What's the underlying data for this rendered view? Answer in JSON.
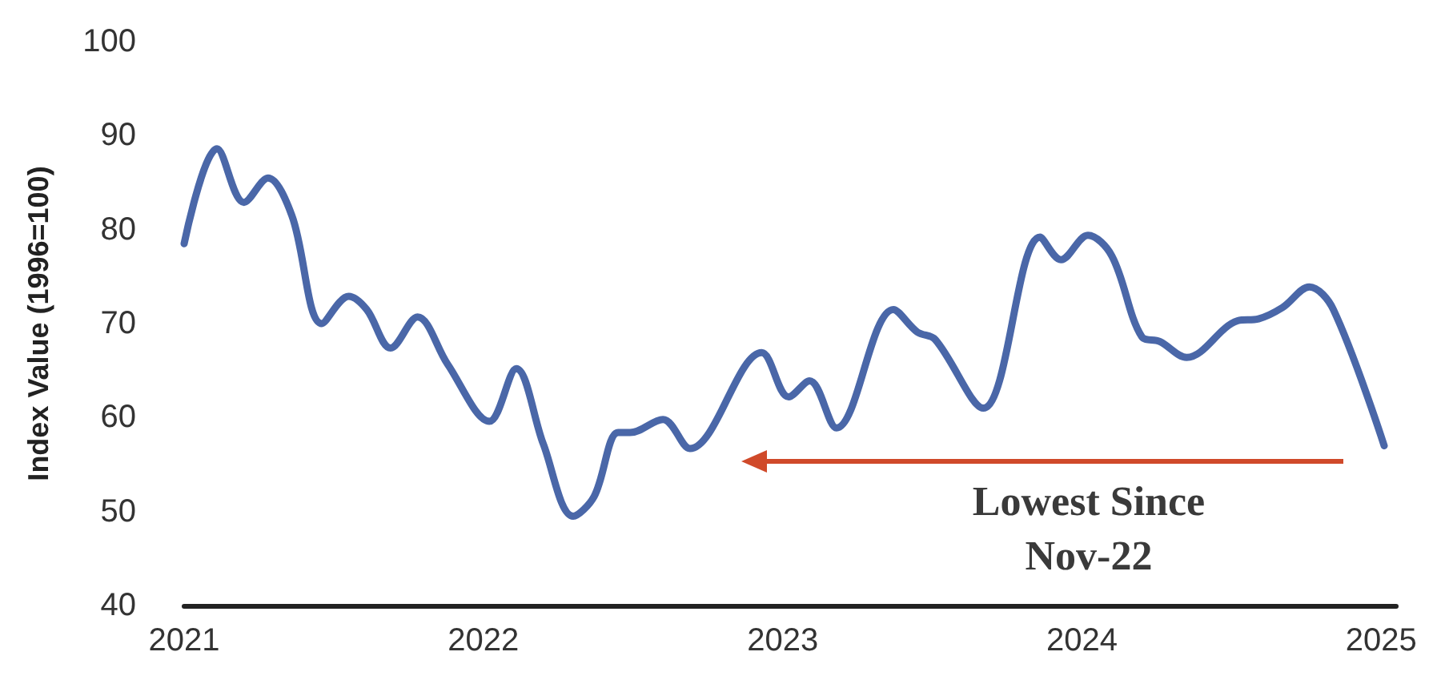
{
  "chart_data": {
    "type": "line",
    "ylabel": "Index Value (1996=100)",
    "x": [
      2021.0,
      2021.11,
      2021.2,
      2021.28,
      2021.36,
      2021.46,
      2021.55,
      2021.61,
      2021.69,
      2021.78,
      2021.88,
      2022.02,
      2022.11,
      2022.2,
      2022.3,
      2022.37,
      2022.45,
      2022.49,
      2022.6,
      2022.69,
      2022.93,
      2023.02,
      2023.09,
      2023.18,
      2023.37,
      2023.45,
      2023.51,
      2023.67,
      2023.86,
      2023.93,
      2024.02,
      2024.1,
      2024.2,
      2024.26,
      2024.35,
      2024.52,
      2024.59,
      2024.67,
      2024.76,
      2024.84,
      2025.01
    ],
    "series": [
      {
        "color": "#4a67a8",
        "values": [
          78.5,
          88.6,
          82.9,
          85.5,
          81.5,
          70.0,
          72.9,
          71.5,
          67.4,
          70.7,
          65.7,
          59.6,
          65.2,
          57.2,
          49.5,
          51.6,
          58.4,
          58.4,
          59.8,
          56.7,
          66.9,
          62.2,
          63.9,
          58.9,
          71.5,
          69.1,
          68.3,
          61.0,
          79.2,
          76.8,
          79.4,
          77.2,
          68.6,
          68.1,
          66.4,
          70.3,
          70.5,
          71.7,
          73.9,
          71.5,
          57.0
        ]
      }
    ],
    "xlim": [
      2021,
      2025.05
    ],
    "xticks": [
      2021,
      2022,
      2023,
      2024,
      2025
    ],
    "ylim": [
      40,
      100
    ],
    "yticks": [
      40,
      50,
      60,
      70,
      80,
      90,
      100
    ],
    "annotations": [
      "Lowest Since\nNov-22"
    ],
    "grid": false,
    "marker": "none",
    "line_style": "solid"
  }
}
